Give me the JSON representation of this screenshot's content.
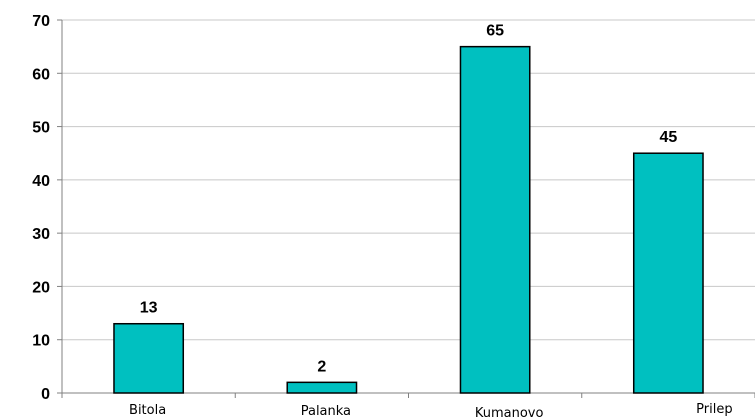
{
  "chart_data": {
    "type": "bar",
    "title": "",
    "xlabel": "",
    "ylabel": "",
    "categories": [
      "Bitola",
      "Palanka",
      "Kumanovo",
      "Prilep"
    ],
    "values": [
      13,
      2,
      65,
      45
    ],
    "data_labels": [
      "13",
      "2",
      "65",
      "45"
    ],
    "ylim": [
      0,
      70
    ],
    "yticks": [
      0,
      10,
      20,
      30,
      40,
      50,
      60,
      70
    ],
    "ytick_labels": [
      "0",
      "10",
      "20",
      "30",
      "40",
      "50",
      "60",
      "70"
    ],
    "grid": true,
    "legend": "none",
    "bar_color": "#00c0c0",
    "bar_edge_color": "#000000",
    "grid_color": "#c8c8c8",
    "axis_color": "#808080"
  }
}
